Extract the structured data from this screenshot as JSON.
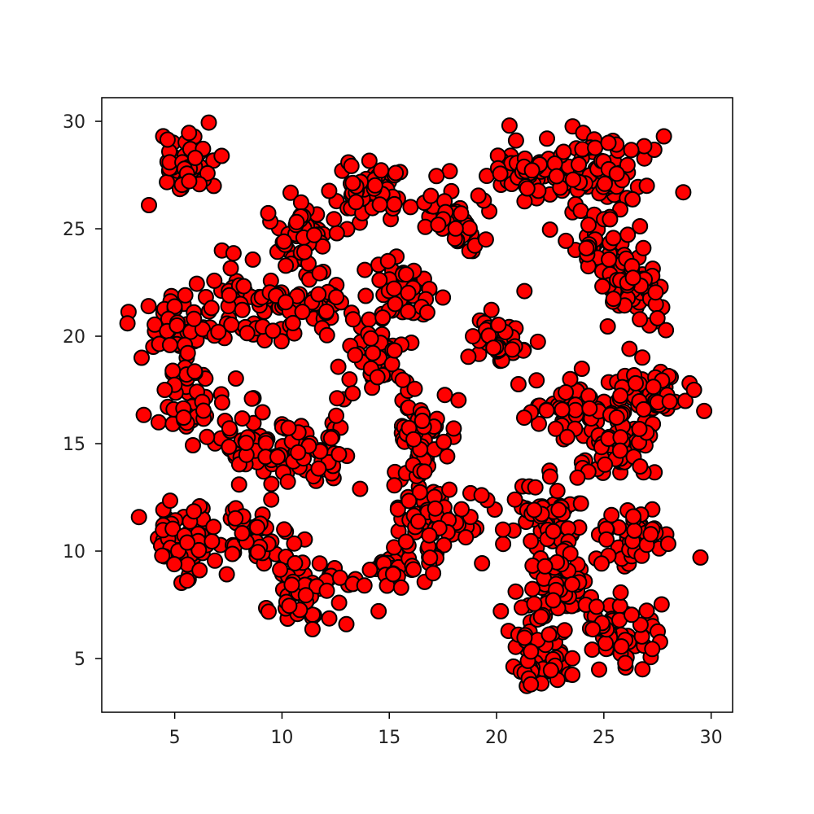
{
  "chart_data": {
    "type": "scatter",
    "title": "",
    "xlabel": "",
    "ylabel": "",
    "xlim": [
      1.6,
      31.0
    ],
    "ylim": [
      2.5,
      31.1
    ],
    "xticks": [
      5,
      10,
      15,
      20,
      25,
      30
    ],
    "yticks": [
      5,
      10,
      15,
      20,
      25,
      30
    ],
    "grid": false,
    "marker_color": "#ff0000",
    "marker_edge_color": "#000000",
    "clusters": [
      {
        "center": [
          5.5,
          28.0
        ],
        "spread": [
          0.7,
          0.8
        ],
        "count": 50
      },
      {
        "center": [
          5.2,
          20.5
        ],
        "spread": [
          0.9,
          0.7
        ],
        "count": 50
      },
      {
        "center": [
          5.5,
          17.0
        ],
        "spread": [
          0.8,
          0.8
        ],
        "count": 45
      },
      {
        "center": [
          5.3,
          10.5
        ],
        "spread": [
          0.8,
          0.8
        ],
        "count": 55
      },
      {
        "center": [
          8.5,
          21.5
        ],
        "spread": [
          1.2,
          0.9
        ],
        "count": 65
      },
      {
        "center": [
          8.5,
          15.0
        ],
        "spread": [
          1.0,
          0.8
        ],
        "count": 45
      },
      {
        "center": [
          8.5,
          10.5
        ],
        "spread": [
          1.0,
          0.8
        ],
        "count": 45
      },
      {
        "center": [
          11.0,
          24.8
        ],
        "spread": [
          0.9,
          0.9
        ],
        "count": 55
      },
      {
        "center": [
          11.5,
          21.5
        ],
        "spread": [
          0.9,
          0.6
        ],
        "count": 40
      },
      {
        "center": [
          11.5,
          14.5
        ],
        "spread": [
          0.9,
          0.8
        ],
        "count": 50
      },
      {
        "center": [
          11.0,
          8.3
        ],
        "spread": [
          0.9,
          0.8
        ],
        "count": 50
      },
      {
        "center": [
          14.0,
          26.8
        ],
        "spread": [
          0.8,
          0.7
        ],
        "count": 55
      },
      {
        "center": [
          15.5,
          22.0
        ],
        "spread": [
          0.8,
          0.8
        ],
        "count": 50
      },
      {
        "center": [
          14.5,
          19.0
        ],
        "spread": [
          0.9,
          0.8
        ],
        "count": 50
      },
      {
        "center": [
          16.5,
          15.0
        ],
        "spread": [
          0.7,
          1.0
        ],
        "count": 55
      },
      {
        "center": [
          17.0,
          11.5
        ],
        "spread": [
          1.0,
          0.9
        ],
        "count": 55
      },
      {
        "center": [
          15.5,
          9.3
        ],
        "spread": [
          0.9,
          0.7
        ],
        "count": 45
      },
      {
        "center": [
          18.0,
          25.5
        ],
        "spread": [
          0.8,
          0.7
        ],
        "count": 55
      },
      {
        "center": [
          20.0,
          19.8
        ],
        "spread": [
          0.6,
          0.7
        ],
        "count": 45
      },
      {
        "center": [
          21.8,
          27.5
        ],
        "spread": [
          1.1,
          0.6
        ],
        "count": 60
      },
      {
        "center": [
          25.0,
          27.8
        ],
        "spread": [
          1.1,
          0.8
        ],
        "count": 60
      },
      {
        "center": [
          25.0,
          24.0
        ],
        "spread": [
          0.8,
          0.9
        ],
        "count": 55
      },
      {
        "center": [
          26.5,
          22.0
        ],
        "spread": [
          0.8,
          0.8
        ],
        "count": 50
      },
      {
        "center": [
          23.5,
          16.5
        ],
        "spread": [
          1.0,
          0.7
        ],
        "count": 50
      },
      {
        "center": [
          27.3,
          17.5
        ],
        "spread": [
          0.9,
          0.8
        ],
        "count": 55
      },
      {
        "center": [
          25.5,
          15.0
        ],
        "spread": [
          0.9,
          0.9
        ],
        "count": 55
      },
      {
        "center": [
          22.5,
          11.5
        ],
        "spread": [
          0.8,
          0.9
        ],
        "count": 55
      },
      {
        "center": [
          23.0,
          8.5
        ],
        "spread": [
          0.9,
          1.0
        ],
        "count": 60
      },
      {
        "center": [
          26.5,
          10.5
        ],
        "spread": [
          0.8,
          0.8
        ],
        "count": 50
      },
      {
        "center": [
          22.3,
          5.5
        ],
        "spread": [
          0.9,
          0.8
        ],
        "count": 55
      },
      {
        "center": [
          25.5,
          6.2
        ],
        "spread": [
          0.9,
          0.8
        ],
        "count": 55
      }
    ],
    "outliers": [
      [
        2.8,
        20.6
      ],
      [
        3.8,
        26.1
      ],
      [
        19.5,
        24.5
      ],
      [
        21.3,
        22.1
      ],
      [
        20.6,
        29.8
      ],
      [
        27.8,
        29.3
      ],
      [
        28.7,
        26.7
      ],
      [
        29.2,
        17.5
      ],
      [
        29.5,
        9.7
      ],
      [
        20.3,
        11.0
      ],
      [
        19.3,
        12.6
      ],
      [
        20.2,
        7.2
      ],
      [
        21.6,
        3.8
      ],
      [
        27.0,
        27.0
      ],
      [
        8.0,
        13.1
      ],
      [
        13.0,
        6.6
      ],
      [
        14.5,
        7.2
      ],
      [
        9.5,
        12.4
      ],
      [
        17.5,
        21.8
      ],
      [
        26.8,
        4.5
      ]
    ]
  }
}
